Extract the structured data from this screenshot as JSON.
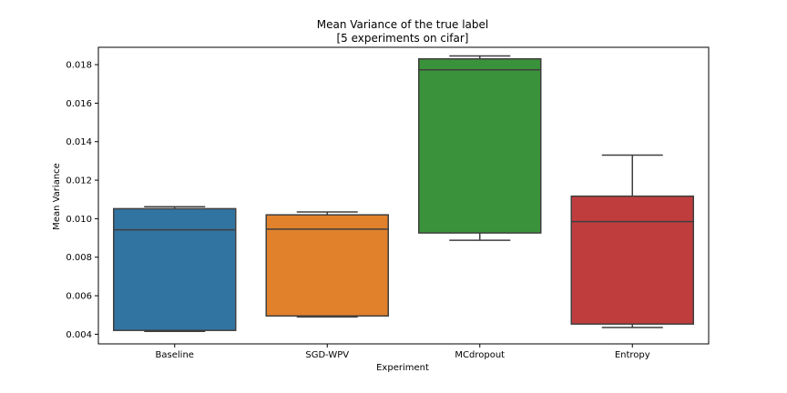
{
  "chart_data": {
    "type": "box",
    "title": "Mean Variance of the true label",
    "subtitle": "[5 experiments on cifar]",
    "xlabel": "Experiment",
    "ylabel": "Mean Variance",
    "categories": [
      "Baseline",
      "SGD-WPV",
      "MCdropout",
      "Entropy"
    ],
    "ylim": [
      0.0035,
      0.0189
    ],
    "yticks": [
      0.004,
      0.006,
      0.008,
      0.01,
      0.012,
      0.014,
      0.016,
      0.018
    ],
    "ytick_labels": [
      "0.004",
      "0.006",
      "0.008",
      "0.010",
      "0.012",
      "0.014",
      "0.016",
      "0.018"
    ],
    "grid": false,
    "boxes": [
      {
        "category": "Baseline",
        "whisker_low": 0.00415,
        "q1": 0.0042,
        "median": 0.00942,
        "q3": 0.01052,
        "whisker_high": 0.01062,
        "color": "#3274a1"
      },
      {
        "category": "SGD-WPV",
        "whisker_low": 0.0049,
        "q1": 0.00495,
        "median": 0.00946,
        "q3": 0.0102,
        "whisker_high": 0.01035,
        "color": "#e1812c"
      },
      {
        "category": "MCdropout",
        "whisker_low": 0.00888,
        "q1": 0.00926,
        "median": 0.01773,
        "q3": 0.0183,
        "whisker_high": 0.01845,
        "color": "#3a923a"
      },
      {
        "category": "Entropy",
        "whisker_low": 0.00435,
        "q1": 0.00453,
        "median": 0.00985,
        "q3": 0.01117,
        "whisker_high": 0.0133,
        "color": "#c03d3e"
      }
    ],
    "line_color": "#3f3f3f"
  }
}
